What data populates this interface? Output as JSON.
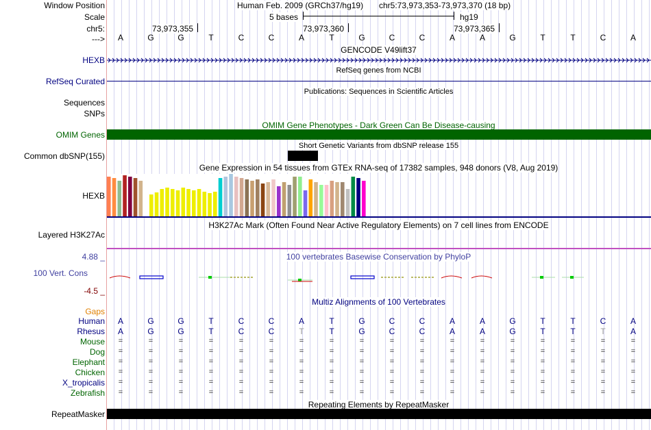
{
  "header": {
    "window_position_label": "Window Position",
    "scale_label": "Scale",
    "chrom_label": "chr5:",
    "arrow_label": "--->",
    "assembly": "Human Feb. 2009 (GRCh37/hg19)",
    "position": "chr5:73,973,353-73,973,370 (18 bp)",
    "scale_text": "5 bases",
    "db": "hg19",
    "coords": [
      "73,973,355",
      "73,973,360",
      "73,973,365"
    ]
  },
  "sequence": [
    "A",
    "G",
    "G",
    "T",
    "C",
    "C",
    "A",
    "T",
    "G",
    "C",
    "C",
    "A",
    "A",
    "G",
    "T",
    "T",
    "C",
    "A"
  ],
  "tracks": {
    "gencode": {
      "title": "GENCODE V49lift37",
      "label": "HEXB"
    },
    "refseq": {
      "title": "RefSeq genes from NCBI",
      "label": "RefSeq Curated"
    },
    "publications": {
      "title": "Publications: Sequences in Scientific Articles",
      "label": "Sequences"
    },
    "snps": {
      "label": "SNPs"
    },
    "omim": {
      "title": "OMIM Gene Phenotypes - Dark Green Can Be Disease-causing",
      "label": "OMIM Genes"
    },
    "dbsnp": {
      "title": "Short Genetic Variants from dbSNP release 155",
      "label": "Common dbSNP(155)"
    },
    "gtex": {
      "title": "Gene Expression in 54 tissues from GTEx RNA-seq of 17382 samples, 948 donors (V8, Aug 2019)",
      "label": "HEXB"
    },
    "h3k27ac": {
      "title": "H3K27Ac Mark (Often Found Near Active Regulatory Elements) on 7 cell lines from ENCODE",
      "label": "Layered H3K27Ac"
    },
    "phylop": {
      "title": "100 vertebrates Basewise Conservation by PhyloP",
      "label": "100 Vert. Cons",
      "max": "4.88 _",
      "min": "-4.5 _"
    },
    "multiz": {
      "title": "Multiz Alignments of 100 Vertebrates",
      "gaps_label": "Gaps"
    },
    "repeatmasker": {
      "title": "Repeating Elements by RepeatMasker",
      "label": "RepeatMasker"
    }
  },
  "species": [
    "Human",
    "Rhesus",
    "Mouse",
    "Dog",
    "Elephant",
    "Chicken",
    "X_tropicalis",
    "Zebrafish"
  ],
  "rhesus_sequence": [
    "A",
    "G",
    "G",
    "T",
    "C",
    "C",
    "T",
    "T",
    "G",
    "C",
    "C",
    "A",
    "A",
    "G",
    "T",
    "T",
    "T",
    "A"
  ],
  "gtex_bars": [
    {
      "color": "#ff7f50",
      "value": 58
    },
    {
      "color": "#ff8c40",
      "value": 56
    },
    {
      "color": "#8fbc8f",
      "value": 52
    },
    {
      "color": "#b22222",
      "value": 60
    },
    {
      "color": "#800040",
      "value": 58
    },
    {
      "color": "#a0522d",
      "value": 56
    },
    {
      "color": "#d2b48c",
      "value": 52
    },
    {
      "color": "#ffffff",
      "value": 0
    },
    {
      "color": "#eeee00",
      "value": 32
    },
    {
      "color": "#eeee00",
      "value": 35
    },
    {
      "color": "#eeee00",
      "value": 40
    },
    {
      "color": "#eeee00",
      "value": 42
    },
    {
      "color": "#eeee00",
      "value": 40
    },
    {
      "color": "#eeee00",
      "value": 38
    },
    {
      "color": "#eeee00",
      "value": 42
    },
    {
      "color": "#eeee00",
      "value": 40
    },
    {
      "color": "#eeee00",
      "value": 38
    },
    {
      "color": "#eeee00",
      "value": 40
    },
    {
      "color": "#eeee00",
      "value": 36
    },
    {
      "color": "#eeee00",
      "value": 34
    },
    {
      "color": "#eeee00",
      "value": 36
    },
    {
      "color": "#00ced1",
      "value": 56
    },
    {
      "color": "#b0c4de",
      "value": 58
    },
    {
      "color": "#a8c8e0",
      "value": 62
    },
    {
      "color": "#e8c0c0",
      "value": 58
    },
    {
      "color": "#d2a890",
      "value": 56
    },
    {
      "color": "#8b7355",
      "value": 54
    },
    {
      "color": "#c8a070",
      "value": 52
    },
    {
      "color": "#a08060",
      "value": 54
    },
    {
      "color": "#8b4513",
      "value": 48
    },
    {
      "color": "#d8b898",
      "value": 50
    },
    {
      "color": "#f0c8c8",
      "value": 54
    },
    {
      "color": "#9932cc",
      "value": 44
    },
    {
      "color": "#c0a070",
      "value": 50
    },
    {
      "color": "#909090",
      "value": 46
    },
    {
      "color": "#a0a070",
      "value": 58
    },
    {
      "color": "#90ee90",
      "value": 58
    },
    {
      "color": "#7b68ee",
      "value": 38
    },
    {
      "color": "#ffa500",
      "value": 54
    },
    {
      "color": "#d2b48c",
      "value": 50
    },
    {
      "color": "#98fb98",
      "value": 46
    },
    {
      "color": "#ffc0cb",
      "value": 46
    },
    {
      "color": "#d8a080",
      "value": 52
    },
    {
      "color": "#d2b48c",
      "value": 50
    },
    {
      "color": "#a08870",
      "value": 50
    },
    {
      "color": "#c0c0c0",
      "value": 40
    },
    {
      "color": "#008b45",
      "value": 58
    },
    {
      "color": "#000080",
      "value": 56
    },
    {
      "color": "#ff00cc",
      "value": 52
    }
  ],
  "colors": {
    "omim": "#006400",
    "gencode": "#000080",
    "h3k27ac_line": "#c050c0",
    "repeat": "#000000"
  }
}
